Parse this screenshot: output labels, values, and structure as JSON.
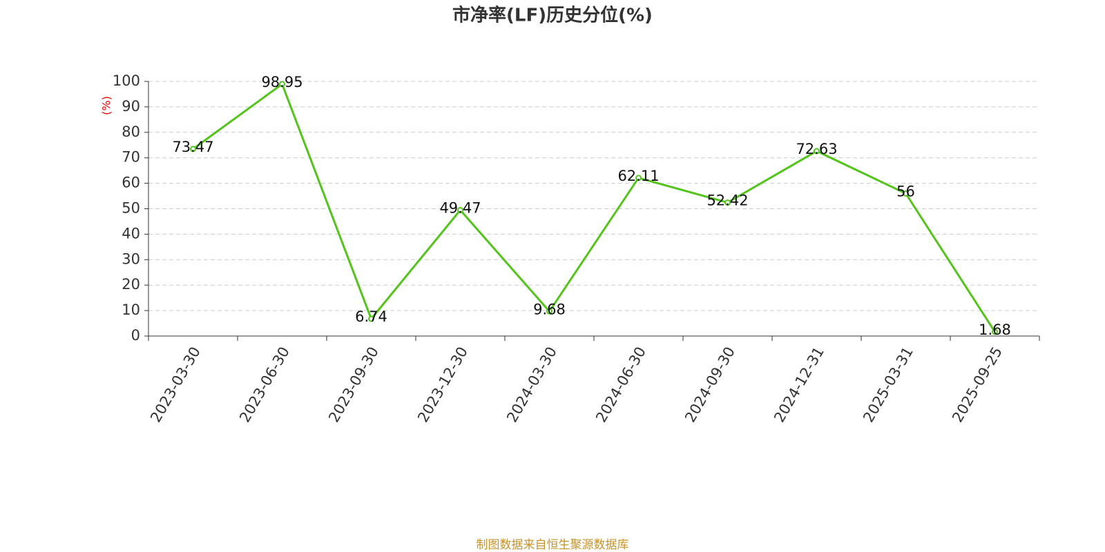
{
  "chart_data": {
    "type": "line",
    "title": "市净率(LF)历史分位(%)",
    "y_label": "(%)",
    "categories": [
      "2023-03-30",
      "2023-06-30",
      "2023-09-30",
      "2023-12-30",
      "2024-03-30",
      "2024-06-30",
      "2024-09-30",
      "2024-12-31",
      "2025-03-31",
      "2025-09-25"
    ],
    "values": [
      73.47,
      98.95,
      6.74,
      49.47,
      9.68,
      62.11,
      52.42,
      72.63,
      56,
      1.68
    ],
    "color": "#52c41a",
    "ylim": [
      0,
      100
    ],
    "yticks": [
      0,
      10,
      20,
      30,
      40,
      50,
      60,
      70,
      80,
      90,
      100
    ],
    "grid": true,
    "source": "制图数据来自恒生聚源数据库"
  }
}
